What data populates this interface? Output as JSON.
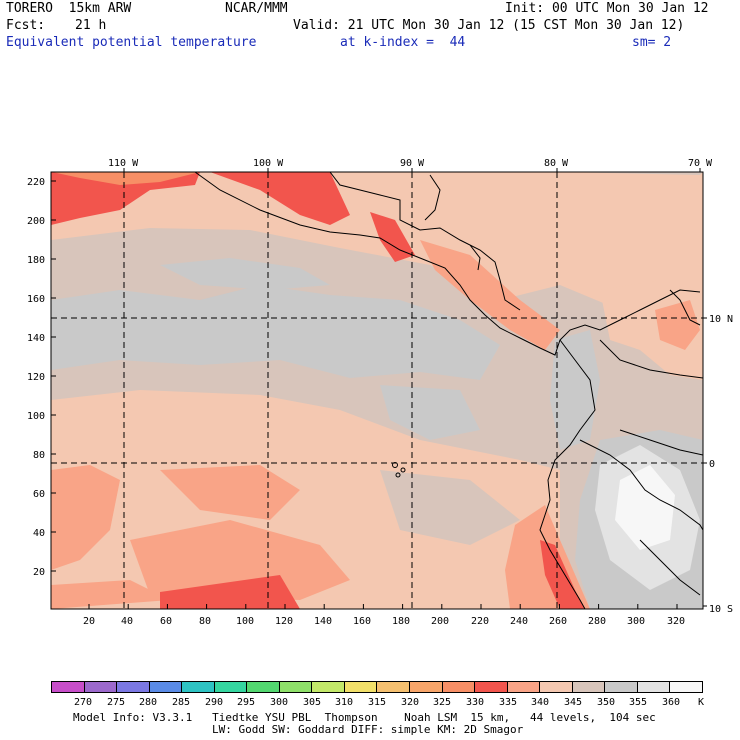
{
  "header": {
    "model": "TORERO  15km ARW",
    "center": "NCAR/MMM",
    "init": "Init: 00 UTC Mon 30 Jan 12",
    "fcst_label": "Fcst:",
    "fcst_value": "21 h",
    "valid": "Valid: 21 UTC Mon 30 Jan 12 (15 CST Mon 30 Jan 12)",
    "field": "Equivalent potential temperature",
    "level": "at k-index =  44",
    "smoothing": "sm= 2"
  },
  "map": {
    "lon_labels": [
      "110 W",
      "100 W",
      "90 W",
      "80 W",
      "70 W"
    ],
    "lat_labels": [
      "10 N",
      "0",
      "10 S"
    ],
    "y_ticks": [
      "220",
      "200",
      "180",
      "160",
      "140",
      "120",
      "100",
      "80",
      "60",
      "40",
      "20"
    ],
    "x_ticks": [
      "20",
      "40",
      "60",
      "80",
      "100",
      "120",
      "140",
      "160",
      "180",
      "200",
      "220",
      "240",
      "260",
      "280",
      "300",
      "320"
    ],
    "colors": {
      "c325": "#f78f66",
      "c330": "#f2554d",
      "c335": "#f9a487",
      "c340": "#f4c8b1",
      "c345": "#d8c5bb",
      "c350": "#c9c9c9",
      "c355": "#e3e3e3",
      "c360": "#f7f7f7",
      "c320": "#f5b07b"
    }
  },
  "legend": {
    "values": [
      "270",
      "275",
      "280",
      "285",
      "290",
      "295",
      "300",
      "305",
      "310",
      "315",
      "320",
      "325",
      "330",
      "335",
      "340",
      "345",
      "350",
      "355",
      "360"
    ],
    "unit": "K",
    "colors": [
      "#c74ec9",
      "#9c69cc",
      "#7b78e3",
      "#5a8be6",
      "#2ec3c3",
      "#35d6a0",
      "#53d770",
      "#8fe06a",
      "#c3e86a",
      "#f2e06a",
      "#f5c070",
      "#f7a56a",
      "#f78f66",
      "#f2554d",
      "#f9a487",
      "#f4c8b1",
      "#d8c5bb",
      "#c9c9c9",
      "#e3e3e3",
      "#f7f7f7"
    ]
  },
  "footer": {
    "line1": "Model Info: V3.3.1   Tiedtke YSU PBL  Thompson    Noah LSM  15 km,   44 levels,  104 sec",
    "line2": "LW: Godd SW: Goddard DIFF: simple KM: 2D Smagor"
  }
}
